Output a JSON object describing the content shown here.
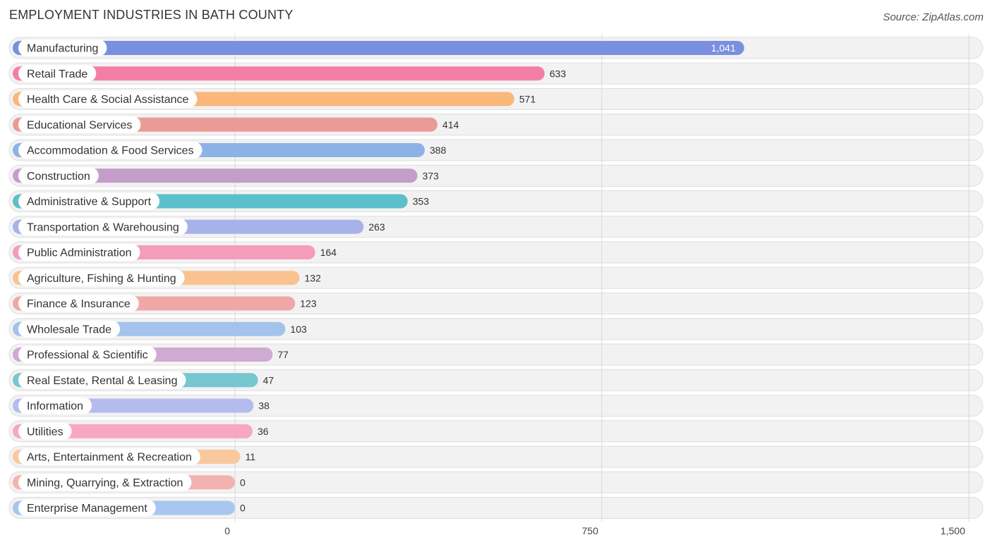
{
  "chart_data": {
    "type": "bar",
    "orientation": "horizontal",
    "title": "EMPLOYMENT INDUSTRIES IN BATH COUNTY",
    "source": "Source: ZipAtlas.com",
    "categories": [
      "Manufacturing",
      "Retail Trade",
      "Health Care & Social Assistance",
      "Educational Services",
      "Accommodation & Food Services",
      "Construction",
      "Administrative & Support",
      "Transportation & Warehousing",
      "Public Administration",
      "Agriculture, Fishing & Hunting",
      "Finance & Insurance",
      "Wholesale Trade",
      "Professional & Scientific",
      "Real Estate, Rental & Leasing",
      "Information",
      "Utilities",
      "Arts, Entertainment & Recreation",
      "Mining, Quarrying, & Extraction",
      "Enterprise Management"
    ],
    "values": [
      1041,
      633,
      571,
      414,
      388,
      373,
      353,
      263,
      164,
      132,
      123,
      103,
      77,
      47,
      38,
      36,
      11,
      0,
      0
    ],
    "value_labels": [
      "1,041",
      "633",
      "571",
      "414",
      "388",
      "373",
      "353",
      "263",
      "164",
      "132",
      "123",
      "103",
      "77",
      "47",
      "38",
      "36",
      "11",
      "0",
      "0"
    ],
    "colors": [
      "#7b8fe0",
      "#f47fa6",
      "#f9b77a",
      "#eb9a96",
      "#8db3e6",
      "#c39ec9",
      "#5dbfc9",
      "#a8b2ea",
      "#f59cbc",
      "#f9c38f",
      "#f0a8a6",
      "#a3c2ec",
      "#cfaad2",
      "#76c7cf",
      "#b4bcee",
      "#f7a6c4",
      "#f9c89d",
      "#f2b3b0",
      "#a8c6ef"
    ],
    "xlim": [
      0,
      1500
    ],
    "xticks": [
      0,
      750,
      1500
    ],
    "xtick_labels": [
      "0",
      "750",
      "1,500"
    ],
    "grid": true
  }
}
